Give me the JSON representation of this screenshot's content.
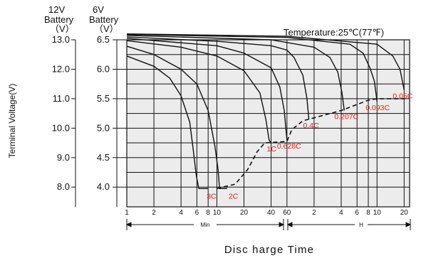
{
  "chart_data": {
    "type": "line",
    "title": "",
    "temperature_note": "Temperature:25℃(77℉)",
    "ylabel": "Terminal Voltage(V)",
    "xlabel": "Disc harge Time",
    "y_axes": [
      {
        "header_line1": "12V",
        "header_line2": "Battery",
        "header_line3": "（V）",
        "ticks": [
          "13.0",
          "12.0",
          "11.0",
          "10.0",
          "9.0",
          "8.0"
        ],
        "range": [
          7.33,
          13.0
        ]
      },
      {
        "header_line1": "6V",
        "header_line2": "Battery",
        "header_line3": "（V）",
        "ticks": [
          "6.5",
          "6.0",
          "5.5",
          "5.0",
          "4.5",
          "4.0"
        ],
        "range": [
          3.67,
          6.5
        ]
      }
    ],
    "x_scale": "log",
    "x_ticks": [
      "1",
      "2",
      "4",
      "6",
      "8",
      "10",
      "20",
      "40",
      "60",
      "2",
      "4",
      "6",
      "8",
      "10",
      "20"
    ],
    "x_unit_min": "Min",
    "x_unit_h": "H",
    "grid": true,
    "series": [
      {
        "name": "3C",
        "points": [
          [
            1,
            12.45
          ],
          [
            2,
            12.1
          ],
          [
            3,
            11.7
          ],
          [
            4,
            11.1
          ],
          [
            5,
            10.2
          ],
          [
            5.5,
            9.2
          ],
          [
            5.9,
            8.4
          ],
          [
            6.3,
            7.95
          ],
          [
            8,
            7.95
          ]
        ]
      },
      {
        "name": "2C",
        "points": [
          [
            1,
            12.78
          ],
          [
            2,
            12.5
          ],
          [
            4,
            12.0
          ],
          [
            6,
            11.5
          ],
          [
            8,
            10.6
          ],
          [
            9.5,
            9.4
          ],
          [
            10.3,
            8.6
          ],
          [
            10.7,
            7.95
          ],
          [
            13,
            7.95
          ]
        ]
      },
      {
        "name": "1C",
        "points": [
          [
            1,
            12.97
          ],
          [
            4,
            12.75
          ],
          [
            10,
            12.45
          ],
          [
            20,
            11.95
          ],
          [
            30,
            11.2
          ],
          [
            35,
            10.3
          ],
          [
            38,
            9.6
          ],
          [
            40,
            9.5
          ]
        ]
      },
      {
        "name": "0.628C",
        "points": [
          [
            1,
            13.05
          ],
          [
            10,
            12.8
          ],
          [
            20,
            12.55
          ],
          [
            40,
            12.05
          ],
          [
            50,
            11.4
          ],
          [
            56,
            10.6
          ],
          [
            60,
            9.6
          ]
        ]
      },
      {
        "name": "0.4C",
        "points": [
          [
            1,
            13.1
          ],
          [
            10,
            12.95
          ],
          [
            40,
            12.8
          ],
          [
            60,
            12.65
          ],
          [
            72,
            12.4
          ],
          [
            90,
            11.8
          ],
          [
            100,
            11.0
          ],
          [
            105,
            10.3
          ]
        ]
      },
      {
        "name": "0.207C",
        "points": [
          [
            1,
            13.15
          ],
          [
            40,
            13.0
          ],
          [
            120,
            12.75
          ],
          [
            180,
            12.4
          ],
          [
            220,
            11.9
          ],
          [
            245,
            11.2
          ],
          [
            260,
            10.6
          ]
        ]
      },
      {
        "name": "0.093C",
        "points": [
          [
            1,
            13.18
          ],
          [
            60,
            13.08
          ],
          [
            300,
            12.85
          ],
          [
            420,
            12.55
          ],
          [
            500,
            12.05
          ],
          [
            560,
            11.6
          ],
          [
            600,
            10.9
          ]
        ]
      },
      {
        "name": "0.05C",
        "points": [
          [
            1,
            13.2
          ],
          [
            60,
            13.12
          ],
          [
            600,
            12.85
          ],
          [
            900,
            12.45
          ],
          [
            1080,
            12.0
          ],
          [
            1200,
            11.3
          ]
        ]
      }
    ],
    "end_voltage_line": [
      [
        10,
        7.95
      ],
      [
        16,
        8.1
      ],
      [
        22,
        8.6
      ],
      [
        28,
        9.2
      ],
      [
        34,
        9.5
      ],
      [
        60,
        9.55
      ],
      [
        68,
        9.95
      ],
      [
        90,
        10.25
      ],
      [
        120,
        10.35
      ],
      [
        240,
        10.6
      ],
      [
        480,
        10.95
      ],
      [
        600,
        11.0
      ],
      [
        1200,
        11.0
      ]
    ]
  }
}
